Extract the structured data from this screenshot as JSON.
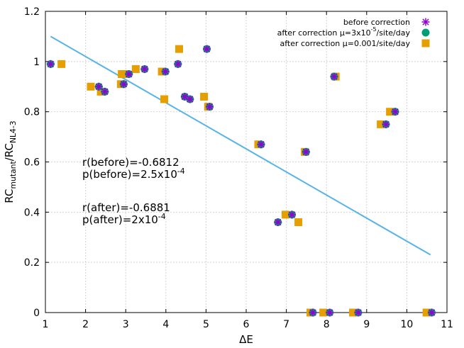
{
  "chart_data": {
    "type": "scatter",
    "xlabel": "ΔE",
    "ylabel": "RC_mutant/RC_NL4-3",
    "xlim": [
      1,
      11
    ],
    "ylim": [
      0,
      1.2
    ],
    "x_ticks": [
      "1",
      "2",
      "3",
      "4",
      "5",
      "6",
      "7",
      "8",
      "9",
      "10",
      "11"
    ],
    "y_ticks": [
      "0",
      "0.2",
      "0.4",
      "0.6",
      "0.8",
      "1",
      "1.2"
    ],
    "grid": true,
    "legend_position": "top-right",
    "series": [
      {
        "name": "before correction",
        "marker": "asterisk",
        "color": "#9400d3",
        "points": [
          [
            1.13,
            0.99
          ],
          [
            2.33,
            0.9
          ],
          [
            2.48,
            0.88
          ],
          [
            2.95,
            0.91
          ],
          [
            3.08,
            0.95
          ],
          [
            3.47,
            0.97
          ],
          [
            3.99,
            0.96
          ],
          [
            4.3,
            0.99
          ],
          [
            4.47,
            0.86
          ],
          [
            4.6,
            0.85
          ],
          [
            5.02,
            1.05
          ],
          [
            5.09,
            0.82
          ],
          [
            6.37,
            0.67
          ],
          [
            6.79,
            0.36
          ],
          [
            7.14,
            0.39
          ],
          [
            7.49,
            0.64
          ],
          [
            7.66,
            0.0
          ],
          [
            8.08,
            0.0
          ],
          [
            8.19,
            0.94
          ],
          [
            8.79,
            0.0
          ],
          [
            9.48,
            0.75
          ],
          [
            9.71,
            0.8
          ],
          [
            10.62,
            0.0
          ]
        ]
      },
      {
        "name": "after correction μ=3x10^-5/site/day",
        "marker": "circle",
        "color": "#009e73",
        "points": [
          [
            1.13,
            0.99
          ],
          [
            2.33,
            0.9
          ],
          [
            2.48,
            0.88
          ],
          [
            2.95,
            0.91
          ],
          [
            3.08,
            0.95
          ],
          [
            3.47,
            0.97
          ],
          [
            3.99,
            0.96
          ],
          [
            4.3,
            0.99
          ],
          [
            4.47,
            0.86
          ],
          [
            4.6,
            0.85
          ],
          [
            5.02,
            1.05
          ],
          [
            5.09,
            0.82
          ],
          [
            6.37,
            0.67
          ],
          [
            6.79,
            0.36
          ],
          [
            7.14,
            0.39
          ],
          [
            7.49,
            0.64
          ],
          [
            7.66,
            0.0
          ],
          [
            8.08,
            0.0
          ],
          [
            8.19,
            0.94
          ],
          [
            8.79,
            0.0
          ],
          [
            9.48,
            0.75
          ],
          [
            9.71,
            0.8
          ],
          [
            10.62,
            0.0
          ]
        ]
      },
      {
        "name": "after correction μ=0.001/site/day",
        "marker": "square",
        "color": "#e69f00",
        "points": [
          [
            1.4,
            0.99
          ],
          [
            2.13,
            0.9
          ],
          [
            2.38,
            0.88
          ],
          [
            2.88,
            0.91
          ],
          [
            2.9,
            0.95
          ],
          [
            3.0,
            0.95
          ],
          [
            3.25,
            0.97
          ],
          [
            3.9,
            0.96
          ],
          [
            3.96,
            0.85
          ],
          [
            4.33,
            1.05
          ],
          [
            4.95,
            0.86
          ],
          [
            5.05,
            0.82
          ],
          [
            6.3,
            0.67
          ],
          [
            6.98,
            0.39
          ],
          [
            7.3,
            0.36
          ],
          [
            7.46,
            0.64
          ],
          [
            7.6,
            0.0
          ],
          [
            7.92,
            0.0
          ],
          [
            8.23,
            0.94
          ],
          [
            8.66,
            0.0
          ],
          [
            9.35,
            0.75
          ],
          [
            9.58,
            0.8
          ],
          [
            10.49,
            0.0
          ]
        ]
      }
    ],
    "fit_line": {
      "color": "#56b4e9",
      "points": [
        [
          1.13,
          1.1
        ],
        [
          10.59,
          0.23
        ]
      ]
    },
    "annotations": [
      "r(before)=-0.6812",
      "p(before)=2.5x10^-4",
      "r(after)=-0.6881",
      "p(after)=2x10^-4"
    ]
  }
}
